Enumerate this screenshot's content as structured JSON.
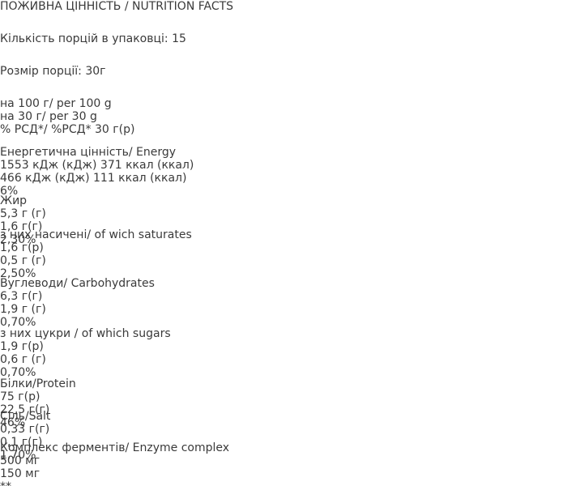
{
  "title": "ПОЖИВНА ЦІННІСТЬ / NUTRITION FACTS",
  "servings": "Кількість порцій в упаковці: 15",
  "serving_size": "Розмір порції: 30г",
  "table": {
    "header": [
      "на 100 г/\nper 100 g",
      "на 30 г/\nper 30 g",
      "% РСД*/\n%РСД* 30 г(р)"
    ],
    "rows": [
      [
        "Енергетична цінність/\nEnergy",
        "1553 кДж (кДж)\n371 ккал (ккал)",
        "466 кДж (кДж)\n111 ккал (ккал)",
        "6%"
      ],
      [
        "Жир",
        "5,3 г (г)",
        "1,6 г(г)",
        "2,30%"
      ],
      [
        "з них насичені/\nof wich saturates",
        "1,6 г(р)",
        "0,5 г (г)",
        "2,50%"
      ],
      [
        "Вуглеводи/\nCarbohydrates",
        "6,3 г(г)",
        "1,9 г (г)",
        "0,70%"
      ],
      [
        "з них цукри /\nof which sugars",
        "1,9 г(р)",
        "0,6 г (г)",
        "0,70%"
      ],
      [
        "Білки/Protein",
        "75 г(р)",
        "22,5 г(г)",
        "46%"
      ],
      [
        "Сіль/Salt",
        "0,33 г(г)",
        "0,1 г(г)",
        "1,70%"
      ],
      [
        "Комплекс ферментів/\nEnzyme complex",
        "500 мг",
        "150 мг",
        "**"
      ]
    ]
  }
}
